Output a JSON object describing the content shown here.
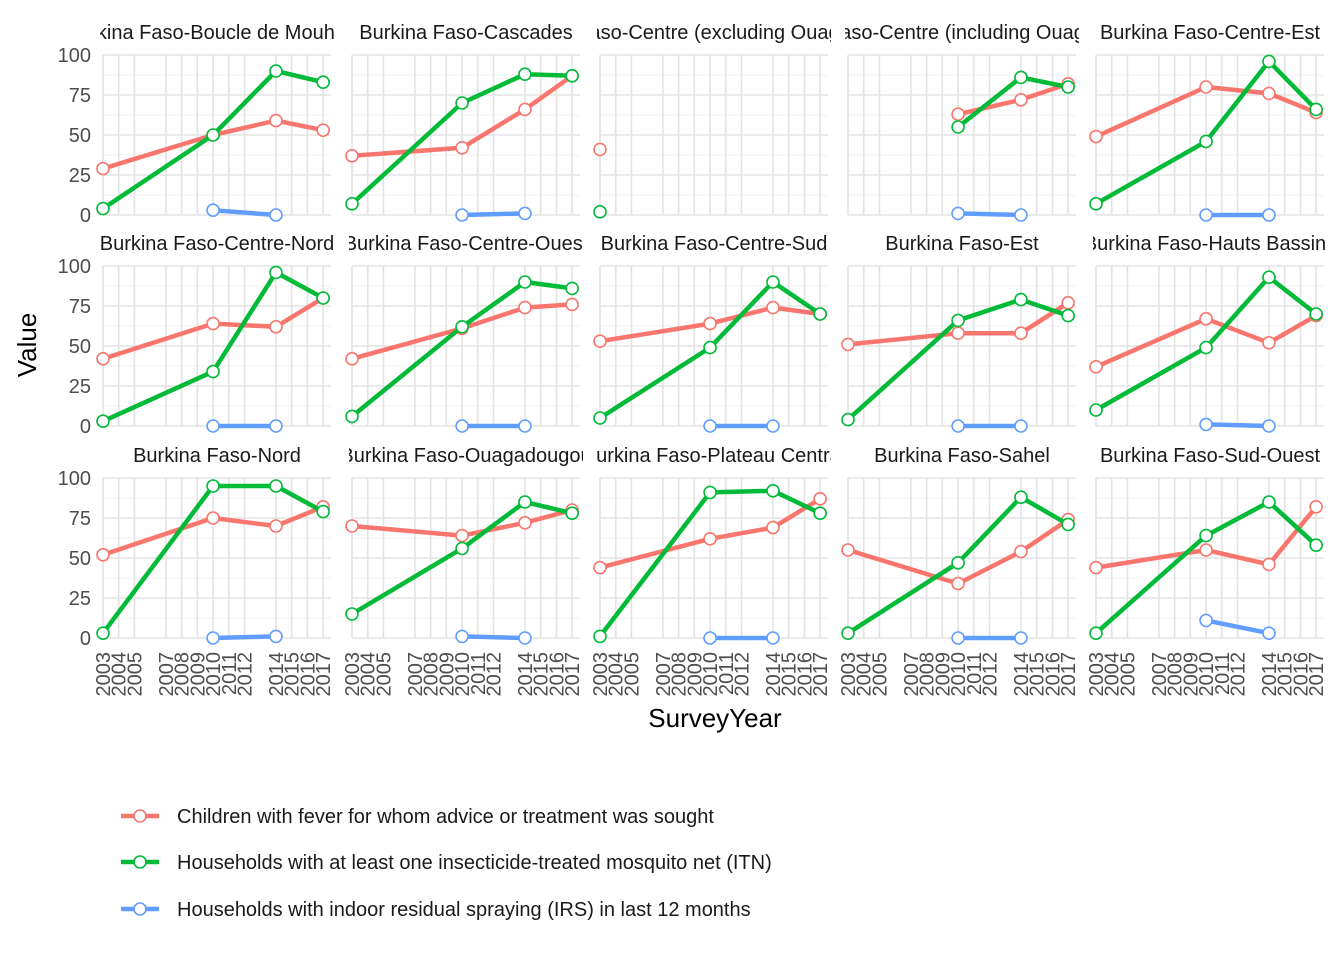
{
  "chart_data": {
    "type": "line",
    "title": "",
    "xlabel": "SurveyYear",
    "ylabel": "Value",
    "ylim": [
      0,
      100
    ],
    "yticks": [
      0,
      25,
      50,
      75,
      100
    ],
    "xlim": [
      2003,
      2017.5
    ],
    "xticks": [
      2003,
      2004,
      2005,
      2007,
      2008,
      2009,
      2010,
      2011,
      2012,
      2014,
      2015,
      2016,
      2017
    ],
    "grid": true,
    "legend_position": "bottom",
    "series_styles": [
      {
        "name": "Children with fever for whom advice or treatment was sought",
        "color": "#F8766D"
      },
      {
        "name": "Households with at least one insecticide-treated mosquito net (ITN)",
        "color": "#00BA38"
      },
      {
        "name": "Households with indoor residual spraying (IRS) in last 12 months",
        "color": "#619CFF"
      }
    ],
    "panels": [
      {
        "title": "Burkina Faso-Boucle de Mouhoun",
        "series": [
          {
            "x": [
              2003,
              2010,
              2014,
              2017
            ],
            "values": [
              29,
              50,
              59,
              53
            ]
          },
          {
            "x": [
              2003,
              2010,
              2014,
              2017
            ],
            "values": [
              4,
              50,
              90,
              83
            ]
          },
          {
            "x": [
              2010,
              2014
            ],
            "values": [
              3,
              0
            ]
          }
        ]
      },
      {
        "title": "Burkina Faso-Cascades",
        "series": [
          {
            "x": [
              2003,
              2010,
              2014,
              2017
            ],
            "values": [
              37,
              42,
              66,
              87
            ]
          },
          {
            "x": [
              2003,
              2010,
              2014,
              2017
            ],
            "values": [
              7,
              70,
              88,
              87
            ]
          },
          {
            "x": [
              2010,
              2014
            ],
            "values": [
              0,
              1
            ]
          }
        ]
      },
      {
        "title": "Burkina Faso-Centre (excluding Ouagadougou)",
        "series": [
          {
            "x": [
              2003
            ],
            "values": [
              41
            ]
          },
          {
            "x": [
              2003
            ],
            "values": [
              2
            ]
          },
          {
            "x": [],
            "values": []
          }
        ]
      },
      {
        "title": "Burkina Faso-Centre (including Ouagadougou)",
        "series": [
          {
            "x": [
              2010,
              2014,
              2017
            ],
            "values": [
              63,
              72,
              82
            ]
          },
          {
            "x": [
              2010,
              2014,
              2017
            ],
            "values": [
              55,
              86,
              80
            ]
          },
          {
            "x": [
              2010,
              2014
            ],
            "values": [
              1,
              0
            ]
          }
        ]
      },
      {
        "title": "Burkina Faso-Centre-Est",
        "series": [
          {
            "x": [
              2003,
              2010,
              2014,
              2017
            ],
            "values": [
              49,
              80,
              76,
              64
            ]
          },
          {
            "x": [
              2003,
              2010,
              2014,
              2017
            ],
            "values": [
              7,
              46,
              96,
              66
            ]
          },
          {
            "x": [
              2010,
              2014
            ],
            "values": [
              0,
              0
            ]
          }
        ]
      },
      {
        "title": "Burkina Faso-Centre-Nord",
        "series": [
          {
            "x": [
              2003,
              2010,
              2014,
              2017
            ],
            "values": [
              42,
              64,
              62,
              80
            ]
          },
          {
            "x": [
              2003,
              2010,
              2014,
              2017
            ],
            "values": [
              3,
              34,
              96,
              80
            ]
          },
          {
            "x": [
              2010,
              2014
            ],
            "values": [
              0,
              0
            ]
          }
        ]
      },
      {
        "title": "Burkina Faso-Centre-Ouest",
        "series": [
          {
            "x": [
              2003,
              2010,
              2014,
              2017
            ],
            "values": [
              42,
              61,
              74,
              76
            ]
          },
          {
            "x": [
              2003,
              2010,
              2014,
              2017
            ],
            "values": [
              6,
              62,
              90,
              86
            ]
          },
          {
            "x": [
              2010,
              2014
            ],
            "values": [
              0,
              0
            ]
          }
        ]
      },
      {
        "title": "Burkina Faso-Centre-Sud",
        "series": [
          {
            "x": [
              2003,
              2010,
              2014,
              2017
            ],
            "values": [
              53,
              64,
              74,
              70
            ]
          },
          {
            "x": [
              2003,
              2010,
              2014,
              2017
            ],
            "values": [
              5,
              49,
              90,
              70
            ]
          },
          {
            "x": [
              2010,
              2014
            ],
            "values": [
              0,
              0
            ]
          }
        ]
      },
      {
        "title": "Burkina Faso-Est",
        "series": [
          {
            "x": [
              2003,
              2010,
              2014,
              2017
            ],
            "values": [
              51,
              58,
              58,
              77
            ]
          },
          {
            "x": [
              2003,
              2010,
              2014,
              2017
            ],
            "values": [
              4,
              66,
              79,
              69
            ]
          },
          {
            "x": [
              2010,
              2014
            ],
            "values": [
              0,
              0
            ]
          }
        ]
      },
      {
        "title": "Burkina Faso-Hauts Bassins",
        "series": [
          {
            "x": [
              2003,
              2010,
              2014,
              2017
            ],
            "values": [
              37,
              67,
              52,
              69
            ]
          },
          {
            "x": [
              2003,
              2010,
              2014,
              2017
            ],
            "values": [
              10,
              49,
              93,
              70
            ]
          },
          {
            "x": [
              2010,
              2014
            ],
            "values": [
              1,
              0
            ]
          }
        ]
      },
      {
        "title": "Burkina Faso-Nord",
        "series": [
          {
            "x": [
              2003,
              2010,
              2014,
              2017
            ],
            "values": [
              52,
              75,
              70,
              82
            ]
          },
          {
            "x": [
              2003,
              2010,
              2014,
              2017
            ],
            "values": [
              3,
              95,
              95,
              79
            ]
          },
          {
            "x": [
              2010,
              2014
            ],
            "values": [
              0,
              1
            ]
          }
        ]
      },
      {
        "title": "Burkina Faso-Ouagadougou",
        "series": [
          {
            "x": [
              2003,
              2010,
              2014,
              2017
            ],
            "values": [
              70,
              64,
              72,
              80
            ]
          },
          {
            "x": [
              2003,
              2010,
              2014,
              2017
            ],
            "values": [
              15,
              56,
              85,
              78
            ]
          },
          {
            "x": [
              2010,
              2014
            ],
            "values": [
              1,
              0
            ]
          }
        ]
      },
      {
        "title": "Burkina Faso-Plateau Central",
        "series": [
          {
            "x": [
              2003,
              2010,
              2014,
              2017
            ],
            "values": [
              44,
              62,
              69,
              87
            ]
          },
          {
            "x": [
              2003,
              2010,
              2014,
              2017
            ],
            "values": [
              1,
              91,
              92,
              78
            ]
          },
          {
            "x": [
              2010,
              2014
            ],
            "values": [
              0,
              0
            ]
          }
        ]
      },
      {
        "title": "Burkina Faso-Sahel",
        "series": [
          {
            "x": [
              2003,
              2010,
              2014,
              2017
            ],
            "values": [
              55,
              34,
              54,
              74
            ]
          },
          {
            "x": [
              2003,
              2010,
              2014,
              2017
            ],
            "values": [
              3,
              47,
              88,
              71
            ]
          },
          {
            "x": [
              2010,
              2014
            ],
            "values": [
              0,
              0
            ]
          }
        ]
      },
      {
        "title": "Burkina Faso-Sud-Ouest",
        "series": [
          {
            "x": [
              2003,
              2010,
              2014,
              2017
            ],
            "values": [
              44,
              55,
              46,
              82
            ]
          },
          {
            "x": [
              2003,
              2010,
              2014,
              2017
            ],
            "values": [
              3,
              64,
              85,
              58
            ]
          },
          {
            "x": [
              2010,
              2014
            ],
            "values": [
              11,
              3
            ]
          }
        ]
      }
    ]
  }
}
